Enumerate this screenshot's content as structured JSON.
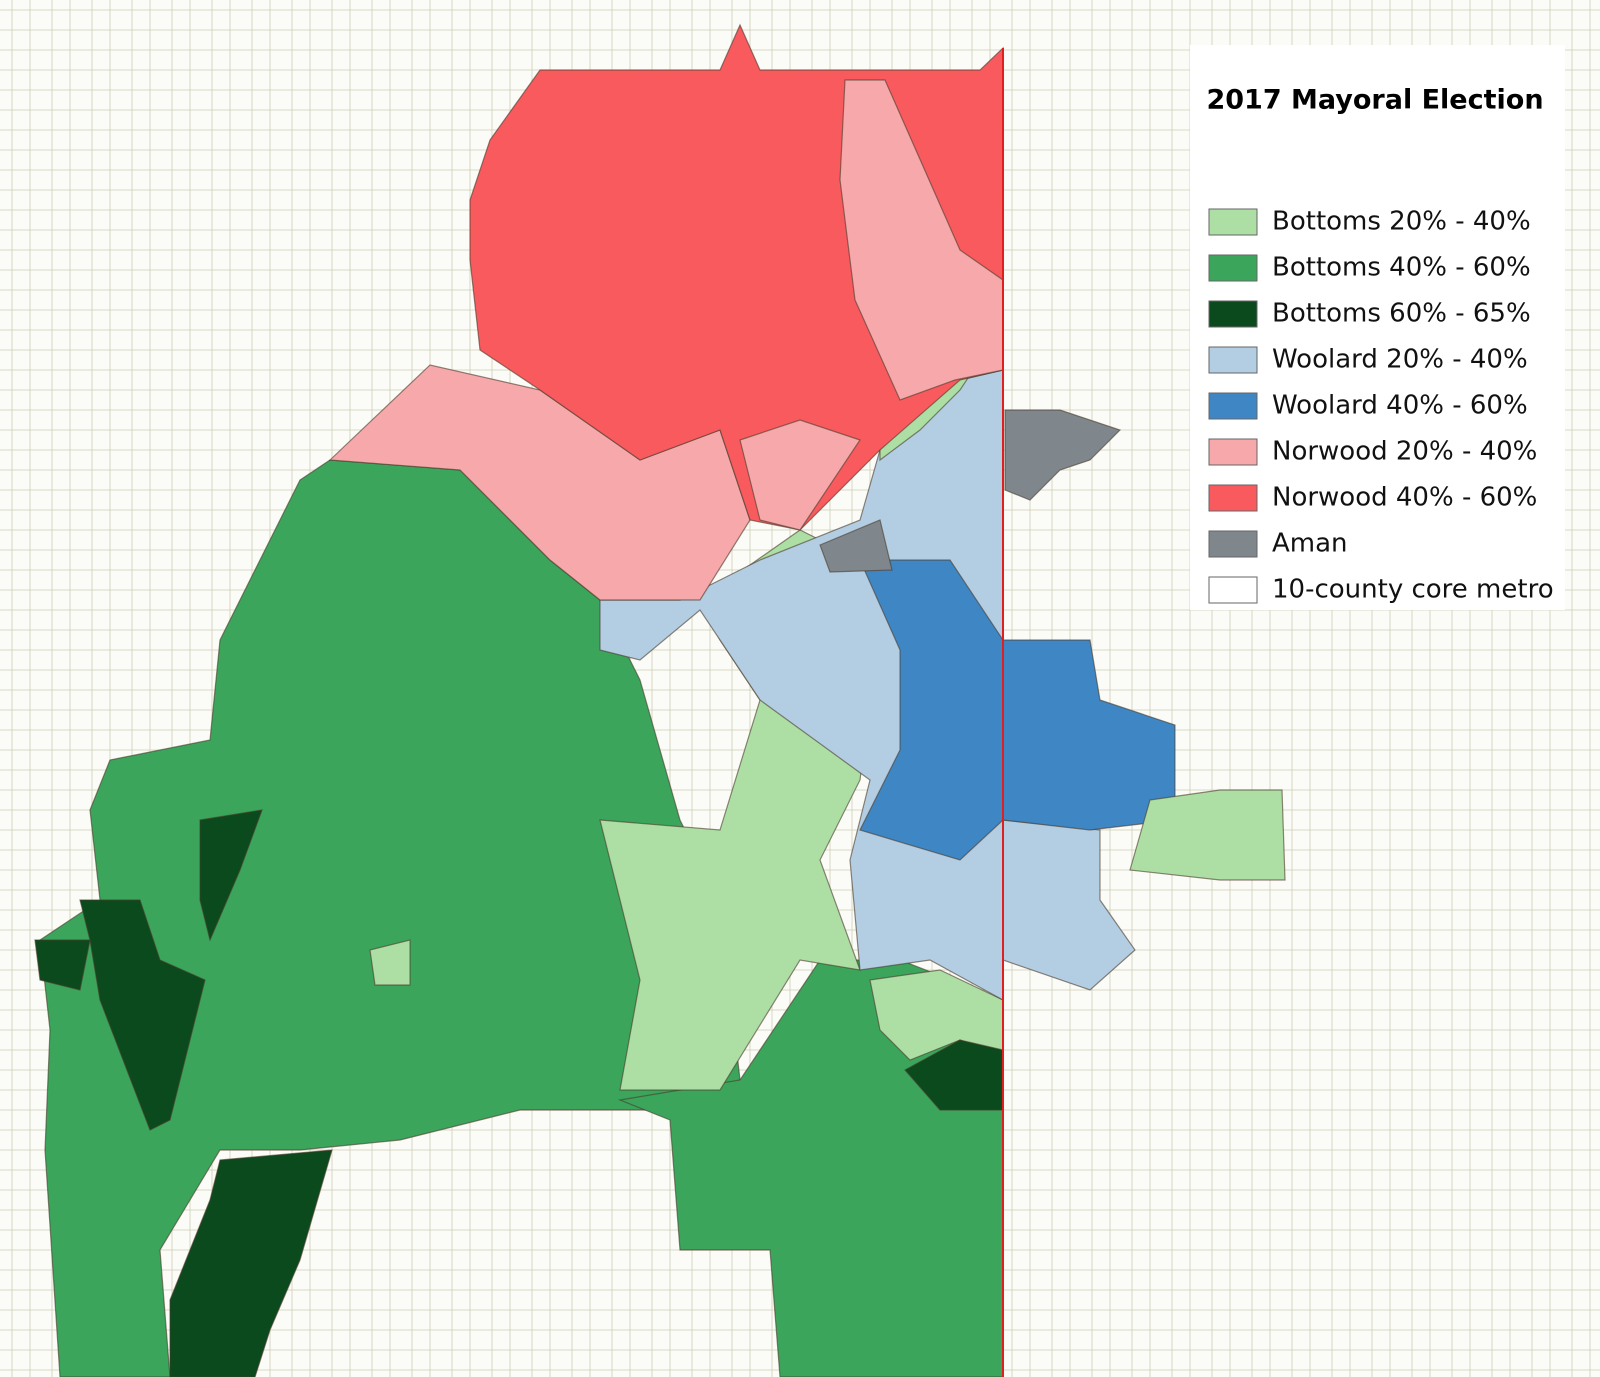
{
  "title": "2017 Mayoral Election",
  "legend": {
    "items": [
      {
        "label": "Bottoms 20% - 40%",
        "color": "#addfa5"
      },
      {
        "label": "Bottoms 40% - 60%",
        "color": "#3ba55c"
      },
      {
        "label": "Bottoms 60% - 65%",
        "color": "#0b4a1d"
      },
      {
        "label": "Woolard 20% - 40%",
        "color": "#b3cde3"
      },
      {
        "label": "Woolard 40% - 60%",
        "color": "#3f86c4"
      },
      {
        "label": "Norwood 20% - 40%",
        "color": "#f6a8ab"
      },
      {
        "label": "Norwood 40% - 60%",
        "color": "#f85a5e"
      },
      {
        "label": "Aman",
        "color": "#7f878d"
      },
      {
        "label": "10-county core metro",
        "color": "#ffffff"
      }
    ]
  }
}
